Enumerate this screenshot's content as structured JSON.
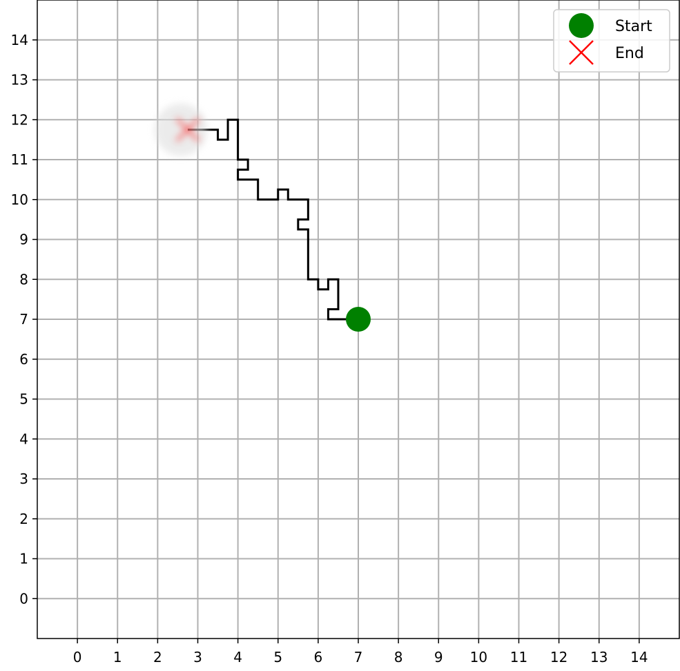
{
  "chart_data": {
    "type": "line",
    "title": "",
    "xlabel": "",
    "ylabel": "",
    "xlim": [
      -1,
      15
    ],
    "ylim": [
      -1,
      15
    ],
    "xticks": [
      "0",
      "1",
      "2",
      "3",
      "4",
      "5",
      "6",
      "7",
      "8",
      "9",
      "10",
      "11",
      "12",
      "13",
      "14"
    ],
    "yticks": [
      "0",
      "1",
      "2",
      "3",
      "4",
      "5",
      "6",
      "7",
      "8",
      "9",
      "10",
      "11",
      "12",
      "13",
      "14"
    ],
    "grid": true,
    "legend_position": "top-right",
    "path": {
      "color": "#000000",
      "points": [
        [
          7,
          7
        ],
        [
          6.25,
          7
        ],
        [
          6.25,
          7.25
        ],
        [
          6.5,
          7.25
        ],
        [
          6.5,
          8
        ],
        [
          6.25,
          8
        ],
        [
          6.25,
          7.75
        ],
        [
          6,
          7.75
        ],
        [
          6,
          8
        ],
        [
          5.75,
          8
        ],
        [
          5.75,
          9.25
        ],
        [
          5.5,
          9.25
        ],
        [
          5.5,
          9.5
        ],
        [
          5.75,
          9.5
        ],
        [
          5.75,
          10
        ],
        [
          5.25,
          10
        ],
        [
          5.25,
          10.25
        ],
        [
          5,
          10.25
        ],
        [
          5,
          10
        ],
        [
          4.5,
          10
        ],
        [
          4.5,
          10.5
        ],
        [
          4,
          10.5
        ],
        [
          4,
          10.75
        ],
        [
          4.25,
          10.75
        ],
        [
          4.25,
          11
        ],
        [
          4,
          11
        ],
        [
          4,
          12
        ],
        [
          3.75,
          12
        ],
        [
          3.75,
          11.5
        ],
        [
          3.5,
          11.5
        ],
        [
          3.5,
          11.75
        ],
        [
          2.75,
          11.75
        ]
      ]
    },
    "start": {
      "label": "Start",
      "x": 7,
      "y": 7,
      "color": "#008000"
    },
    "end": {
      "label": "End",
      "x": 2.75,
      "y": 11.75,
      "color": "#ff0000"
    }
  }
}
